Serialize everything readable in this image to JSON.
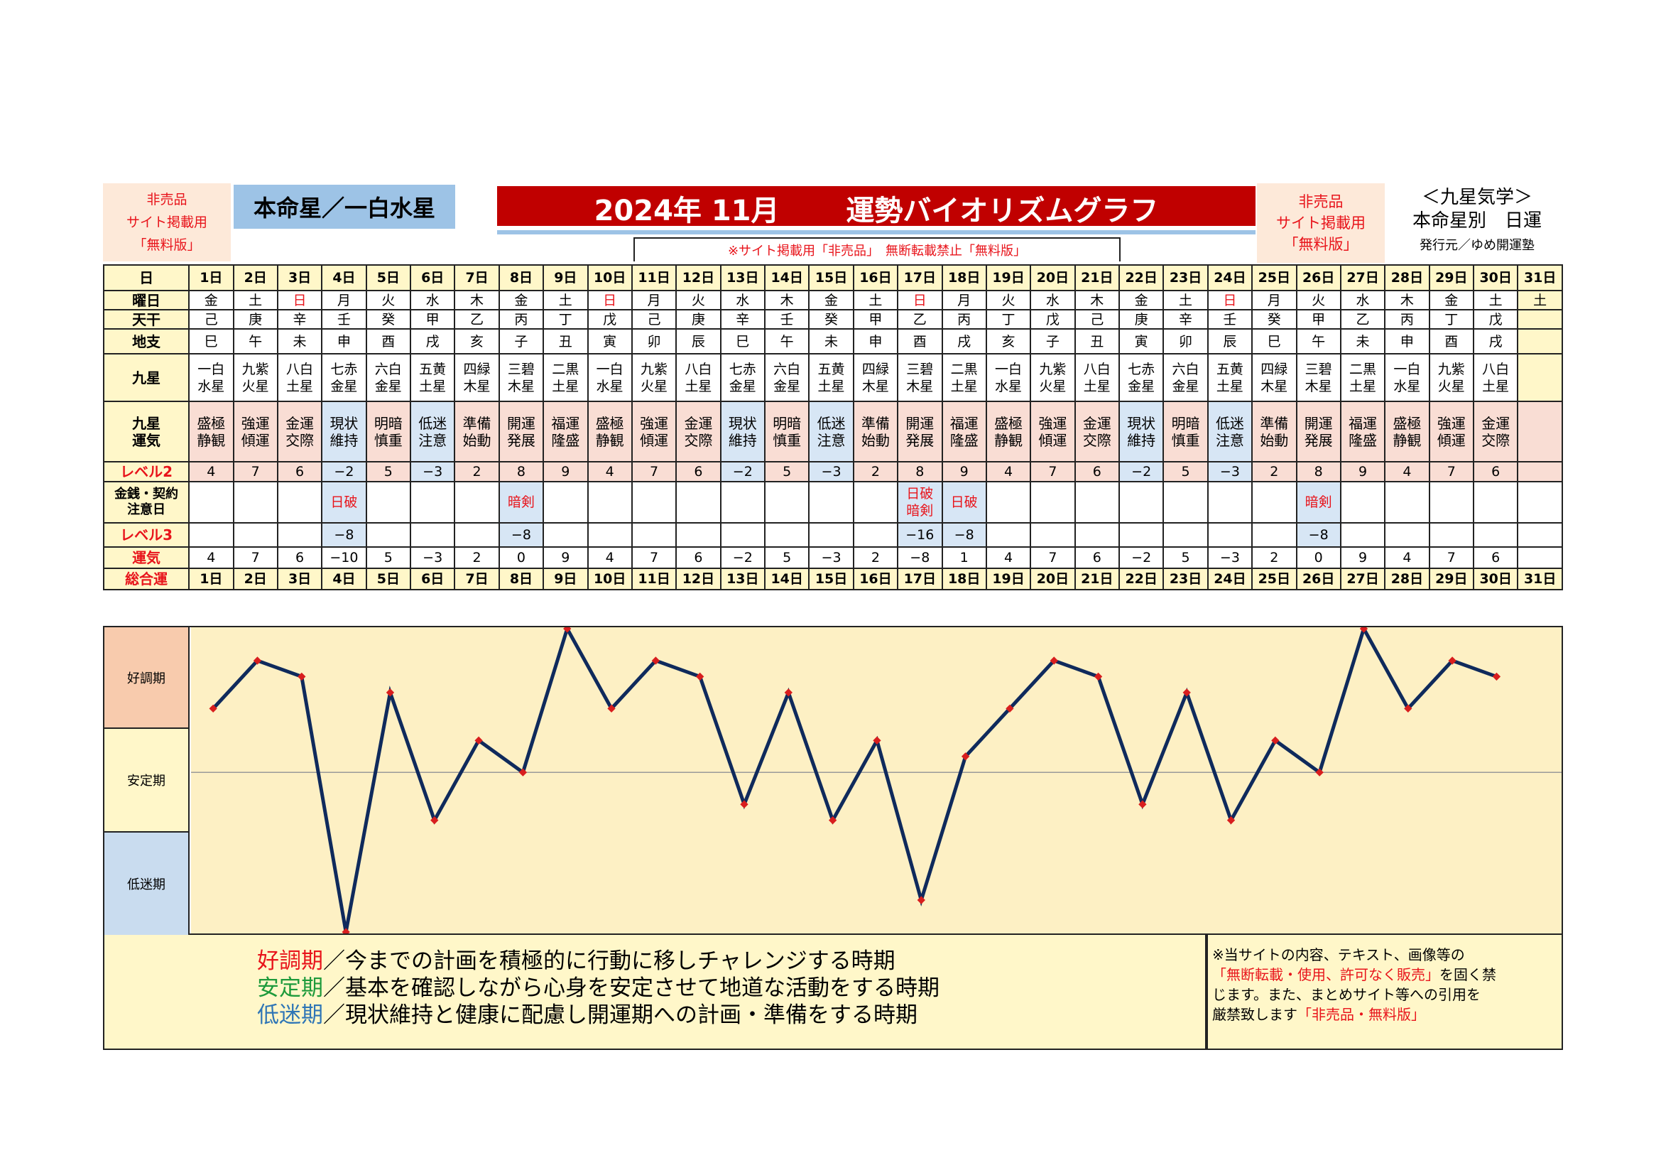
{
  "header": {
    "left_badge": [
      "非売品",
      "サイト掲載用",
      "「無料版」"
    ],
    "honmei_label": "本命星／一白水星",
    "main_title": "2024年 11月　　 運勢バイオリズムグラフ",
    "sub_notice": "※サイト掲載用「非売品」　無断転載禁止「無料版」",
    "right_badge": [
      "非売品",
      "サイト掲載用",
      "「無料版」"
    ],
    "right_info": [
      "＜九星気学＞",
      "本命星別　日運",
      "発行元／ゆめ開運塾"
    ]
  },
  "row_labels": {
    "day": "日",
    "weekday": "曜日",
    "tenkan": "天干",
    "chishi": "地支",
    "kyusei": "九星",
    "kyusei_unki": [
      "九星",
      "運気"
    ],
    "level2": "レベル2",
    "caution": [
      "金銭・契約",
      "注意日"
    ],
    "level3": "レベル3",
    "total": [
      "運気",
      "総合運"
    ]
  },
  "days": [
    "1日",
    "2日",
    "3日",
    "4日",
    "5日",
    "6日",
    "7日",
    "8日",
    "9日",
    "10日",
    "11日",
    "12日",
    "13日",
    "14日",
    "15日",
    "16日",
    "17日",
    "18日",
    "19日",
    "20日",
    "21日",
    "22日",
    "23日",
    "24日",
    "25日",
    "26日",
    "27日",
    "28日",
    "29日",
    "30日",
    "31日"
  ],
  "weekdays": [
    "金",
    "土",
    "日",
    "月",
    "火",
    "水",
    "木",
    "金",
    "土",
    "日",
    "月",
    "火",
    "水",
    "木",
    "金",
    "土",
    "日",
    "月",
    "火",
    "水",
    "木",
    "金",
    "土",
    "日",
    "月",
    "火",
    "水",
    "木",
    "金",
    "土",
    "土"
  ],
  "tenkan": [
    "己",
    "庚",
    "辛",
    "壬",
    "癸",
    "甲",
    "乙",
    "丙",
    "丁",
    "戊",
    "己",
    "庚",
    "辛",
    "壬",
    "癸",
    "甲",
    "乙",
    "丙",
    "丁",
    "戊",
    "己",
    "庚",
    "辛",
    "壬",
    "癸",
    "甲",
    "乙",
    "丙",
    "丁",
    "戊",
    ""
  ],
  "chishi": [
    "巳",
    "午",
    "未",
    "申",
    "酉",
    "戌",
    "亥",
    "子",
    "丑",
    "寅",
    "卯",
    "辰",
    "巳",
    "午",
    "未",
    "申",
    "酉",
    "戌",
    "亥",
    "子",
    "丑",
    "寅",
    "卯",
    "辰",
    "巳",
    "午",
    "未",
    "申",
    "酉",
    "戌",
    ""
  ],
  "kyusei": [
    [
      "一白",
      "水星"
    ],
    [
      "九紫",
      "火星"
    ],
    [
      "八白",
      "土星"
    ],
    [
      "七赤",
      "金星"
    ],
    [
      "六白",
      "金星"
    ],
    [
      "五黄",
      "土星"
    ],
    [
      "四緑",
      "木星"
    ],
    [
      "三碧",
      "木星"
    ],
    [
      "二黒",
      "土星"
    ],
    [
      "一白",
      "水星"
    ],
    [
      "九紫",
      "火星"
    ],
    [
      "八白",
      "土星"
    ],
    [
      "七赤",
      "金星"
    ],
    [
      "六白",
      "金星"
    ],
    [
      "五黄",
      "土星"
    ],
    [
      "四緑",
      "木星"
    ],
    [
      "三碧",
      "木星"
    ],
    [
      "二黒",
      "土星"
    ],
    [
      "一白",
      "水星"
    ],
    [
      "九紫",
      "火星"
    ],
    [
      "八白",
      "土星"
    ],
    [
      "七赤",
      "金星"
    ],
    [
      "六白",
      "金星"
    ],
    [
      "五黄",
      "土星"
    ],
    [
      "四緑",
      "木星"
    ],
    [
      "三碧",
      "木星"
    ],
    [
      "二黒",
      "土星"
    ],
    [
      "一白",
      "水星"
    ],
    [
      "九紫",
      "火星"
    ],
    [
      "八白",
      "土星"
    ],
    [
      "",
      ""
    ]
  ],
  "unki": [
    [
      "盛極",
      "静観"
    ],
    [
      "強運",
      "傾運"
    ],
    [
      "金運",
      "交際"
    ],
    [
      "現状",
      "維持"
    ],
    [
      "明暗",
      "慎重"
    ],
    [
      "低迷",
      "注意"
    ],
    [
      "準備",
      "始動"
    ],
    [
      "開運",
      "発展"
    ],
    [
      "福運",
      "隆盛"
    ],
    [
      "盛極",
      "静観"
    ],
    [
      "強運",
      "傾運"
    ],
    [
      "金運",
      "交際"
    ],
    [
      "現状",
      "維持"
    ],
    [
      "明暗",
      "慎重"
    ],
    [
      "低迷",
      "注意"
    ],
    [
      "準備",
      "始動"
    ],
    [
      "開運",
      "発展"
    ],
    [
      "福運",
      "隆盛"
    ],
    [
      "盛極",
      "静観"
    ],
    [
      "強運",
      "傾運"
    ],
    [
      "金運",
      "交際"
    ],
    [
      "現状",
      "維持"
    ],
    [
      "明暗",
      "慎重"
    ],
    [
      "低迷",
      "注意"
    ],
    [
      "準備",
      "始動"
    ],
    [
      "開運",
      "発展"
    ],
    [
      "福運",
      "隆盛"
    ],
    [
      "盛極",
      "静観"
    ],
    [
      "強運",
      "傾運"
    ],
    [
      "金運",
      "交際"
    ],
    [
      "",
      ""
    ]
  ],
  "level2": [
    "4",
    "7",
    "6",
    "−2",
    "5",
    "−3",
    "2",
    "8",
    "9",
    "4",
    "7",
    "6",
    "−2",
    "5",
    "−3",
    "2",
    "8",
    "9",
    "4",
    "7",
    "6",
    "−2",
    "5",
    "−3",
    "2",
    "8",
    "9",
    "4",
    "7",
    "6",
    ""
  ],
  "caution": [
    [],
    [],
    [],
    [
      "日破"
    ],
    [],
    [],
    [],
    [
      "暗剣"
    ],
    [],
    [],
    [],
    [],
    [],
    [],
    [],
    [],
    [
      "日破",
      "暗剣"
    ],
    [
      "日破"
    ],
    [],
    [],
    [],
    [],
    [],
    [],
    [],
    [
      "暗剣"
    ],
    [],
    [],
    [],
    [],
    []
  ],
  "level3": [
    "",
    "",
    "",
    "−8",
    "",
    "",
    "",
    "−8",
    "",
    "",
    "",
    "",
    "",
    "",
    "",
    "",
    "−16",
    "−8",
    "",
    "",
    "",
    "",
    "",
    "",
    "",
    "−8",
    "",
    "",
    "",
    "",
    ""
  ],
  "total": [
    "4",
    "7",
    "6",
    "−10",
    "5",
    "−3",
    "2",
    "0",
    "9",
    "4",
    "7",
    "6",
    "−2",
    "5",
    "−3",
    "2",
    "−8",
    "1",
    "4",
    "7",
    "6",
    "−2",
    "5",
    "−3",
    "2",
    "0",
    "9",
    "4",
    "7",
    "6",
    ""
  ],
  "chart_data": {
    "type": "line",
    "x": [
      "1日",
      "2日",
      "3日",
      "4日",
      "5日",
      "6日",
      "7日",
      "8日",
      "9日",
      "10日",
      "11日",
      "12日",
      "13日",
      "14日",
      "15日",
      "16日",
      "17日",
      "18日",
      "19日",
      "20日",
      "21日",
      "22日",
      "23日",
      "24日",
      "25日",
      "26日",
      "27日",
      "28日",
      "29日",
      "30日"
    ],
    "values": [
      4,
      7,
      6,
      -10,
      5,
      -3,
      2,
      0,
      9,
      4,
      7,
      6,
      -2,
      5,
      -3,
      2,
      -8,
      1,
      4,
      7,
      6,
      -2,
      5,
      -3,
      2,
      0,
      9,
      4,
      7,
      6
    ],
    "ylim": [
      -10,
      9
    ],
    "bands": [
      "好調期",
      "安定期",
      "低迷期"
    ],
    "line_color": "#0f2a5c",
    "marker_color": "#d81e1e",
    "background_color": "#fdf0c4"
  },
  "legend": {
    "good_term": "好調期",
    "good_text": "／今までの計画を積極的に行動に移しチャレンジする時期",
    "stable_term": "安定期",
    "stable_text": "／基本を確認しながら心身を安定させて地道な活動をする時期",
    "low_term": "低迷期",
    "low_text": "／現状維持と健康に配慮し開運期への計画・準備をする時期"
  },
  "notice": {
    "line1": "※当サイトの内容、テキスト、画像等の",
    "line2_red": "「無断転載・使用、許可なく販売」",
    "line2_rest": "を固く禁",
    "line3": "じます。また、まとめサイト等への引用を",
    "line4": "厳禁致します",
    "line4_red": "「非売品・無料版」"
  },
  "colors": {
    "title_bg": "#c00000",
    "honmei_bg": "#9dc3e6",
    "badge_bg": "#fde9d9",
    "good_color": "#e8141b",
    "stable_color": "#1d9a3b",
    "low_color": "#2e75b6"
  }
}
